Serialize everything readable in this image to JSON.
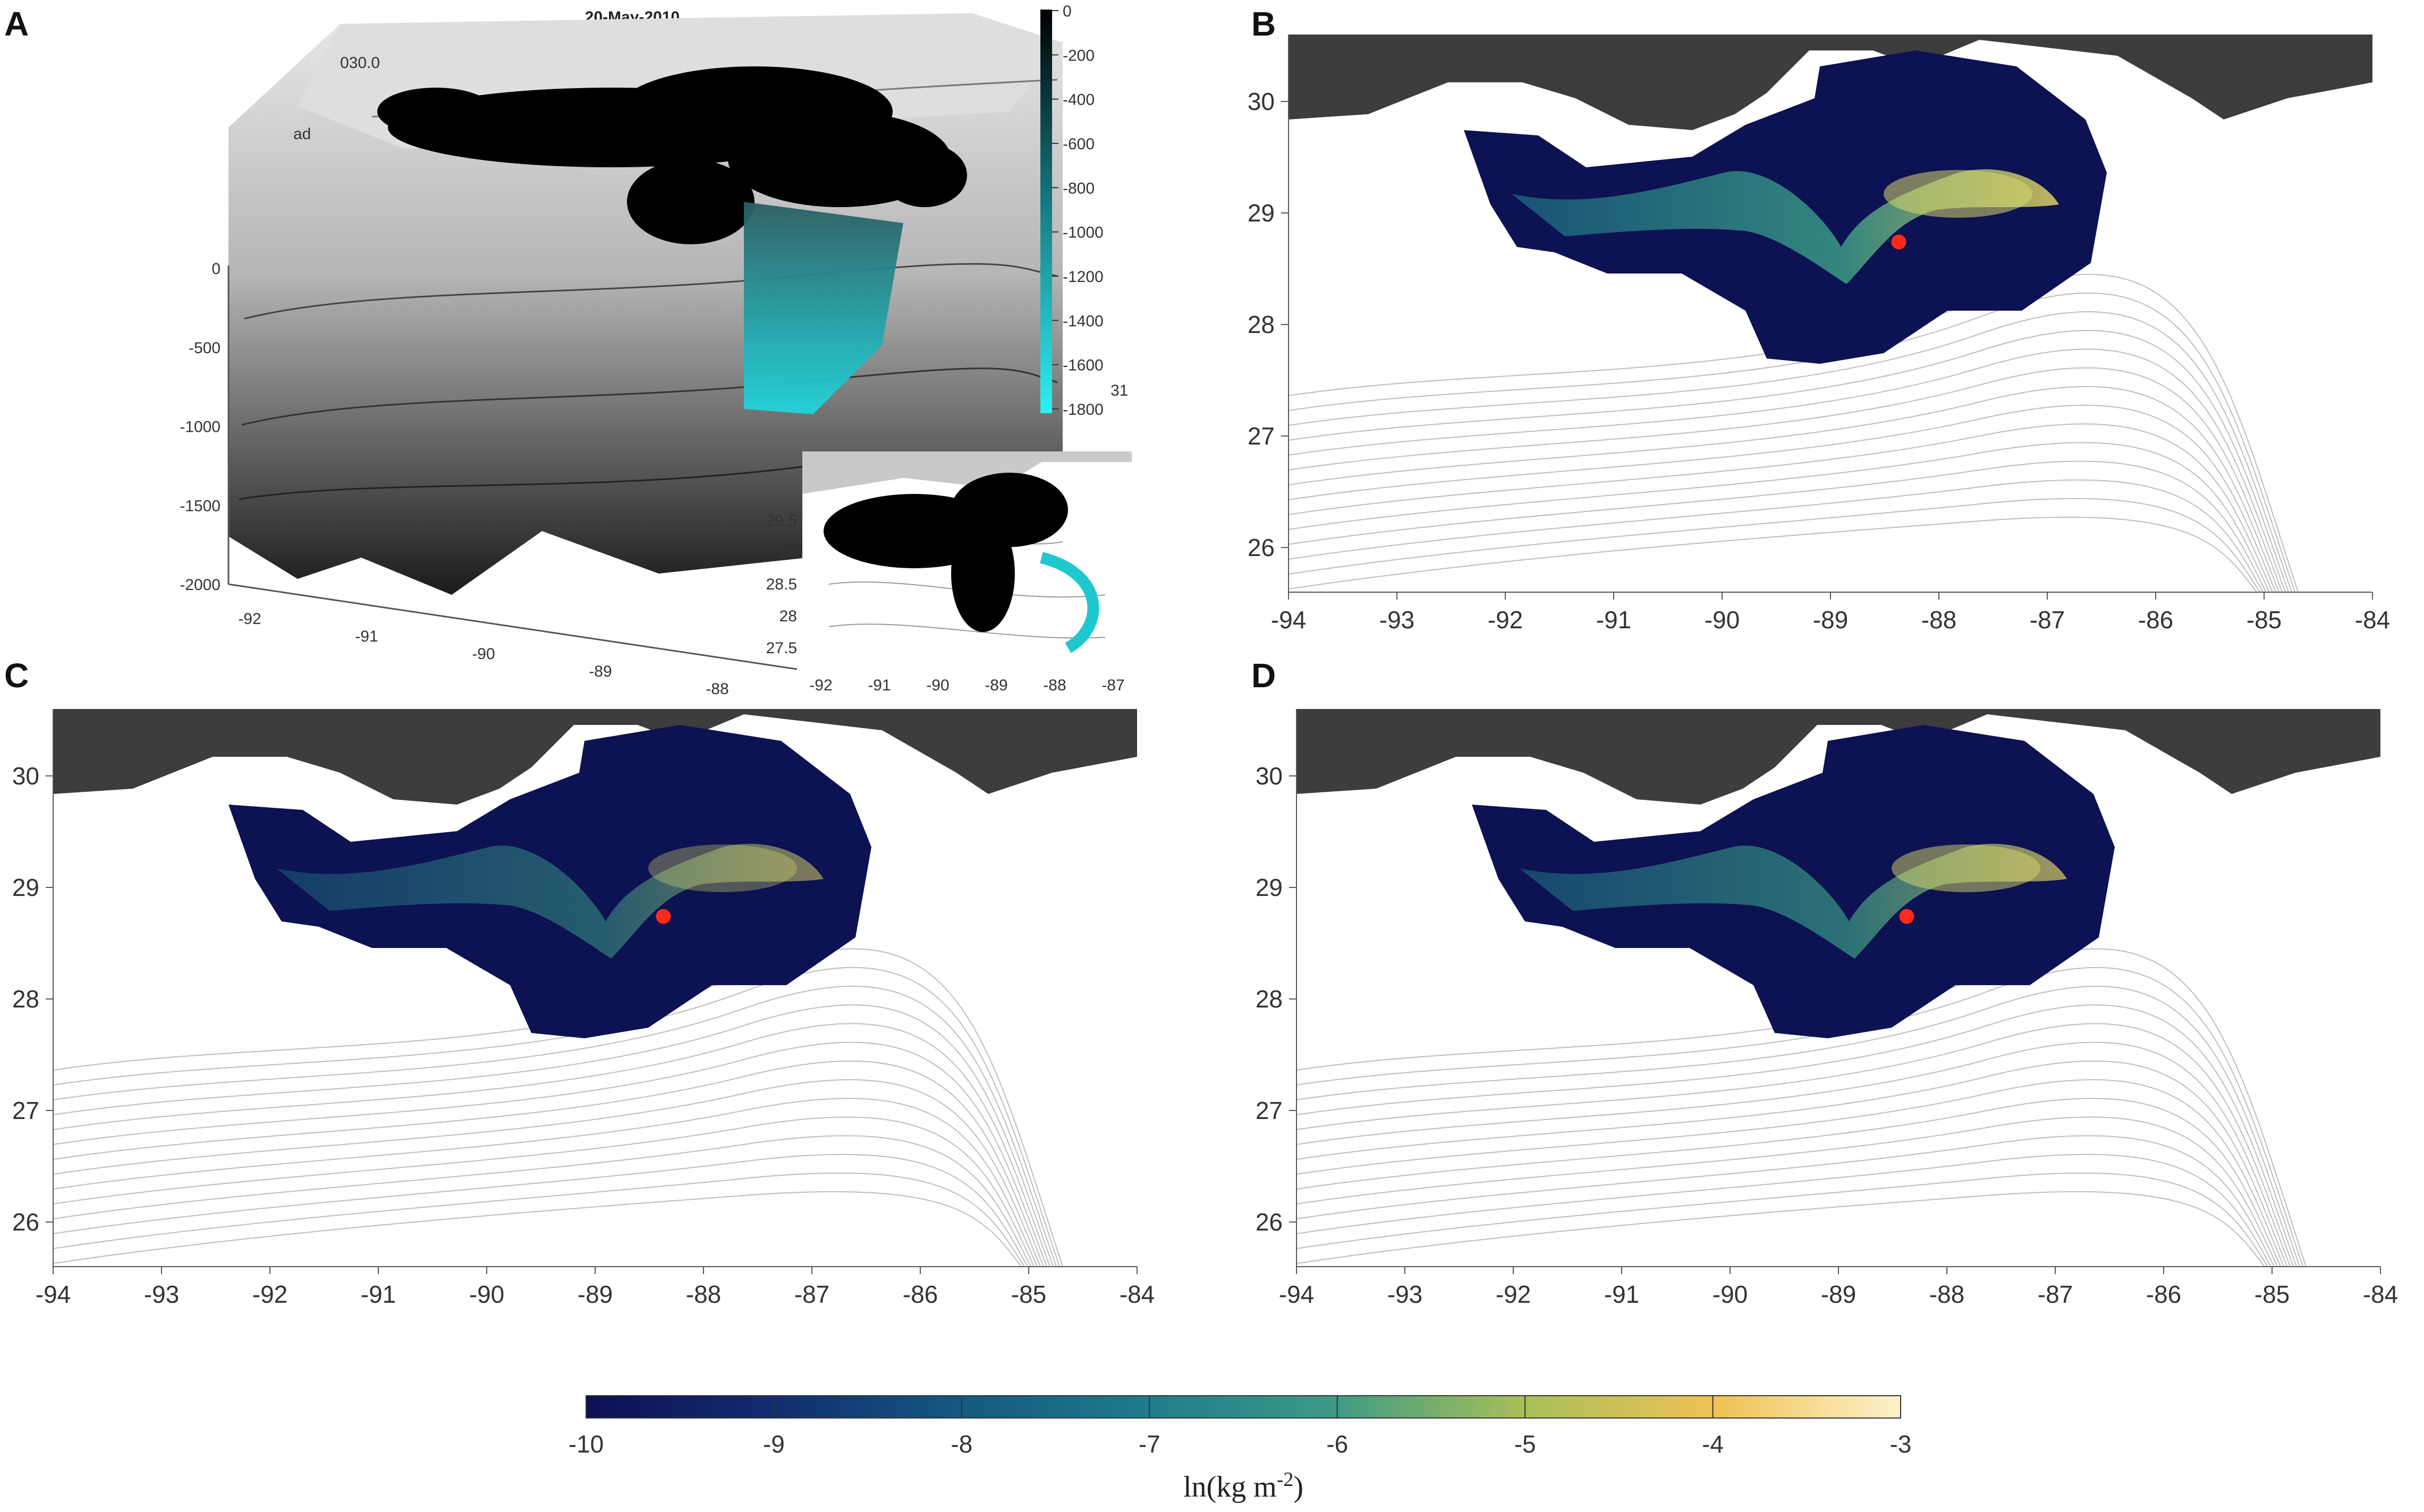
{
  "figure": {
    "panels": [
      {
        "id": "A",
        "letter": "A",
        "title": "20-May-2010",
        "depth_colorbar_ticks": [
          "0",
          "-200",
          "-400",
          "-600",
          "-800",
          "-1000",
          "-1200",
          "-1400",
          "-1600",
          "-1800"
        ],
        "z_ticks": [
          "0",
          "-500",
          "-1000",
          "-1500",
          "-2000"
        ],
        "x_ticks": [
          "-92",
          "-91",
          "-90",
          "-89",
          "-88"
        ],
        "y_ticks_3d": [
          "31"
        ],
        "inset": {
          "x_ticks": [
            "-92",
            "-91",
            "-90",
            "-89",
            "-88",
            "-87"
          ],
          "y_ticks": [
            "29.5",
            "29",
            "28.5",
            "28",
            "27.5"
          ]
        },
        "corner_labels": [
          "030.0",
          "ad"
        ],
        "colors": {
          "particles_surface": "#000000",
          "particles_deep": "#1fc7cf"
        }
      },
      {
        "id": "B",
        "letter": "B"
      },
      {
        "id": "C",
        "letter": "C"
      },
      {
        "id": "D",
        "letter": "D"
      }
    ],
    "map_axes": {
      "x_ticks": [
        "-94",
        "-93",
        "-92",
        "-91",
        "-90",
        "-89",
        "-88",
        "-87",
        "-86",
        "-85",
        "-84"
      ],
      "y_ticks": [
        "30",
        "29",
        "28",
        "27",
        "26"
      ]
    },
    "release_point": {
      "lon": -88.37,
      "lat": 28.74,
      "color": "#ff2a1a"
    },
    "colorbar": {
      "ticks": [
        "-10",
        "-9",
        "-8",
        "-7",
        "-6",
        "-5",
        "-4",
        "-3"
      ],
      "label_main": "ln(kg m",
      "label_sup": "-2",
      "label_end": ")",
      "colors": [
        "#10135a",
        "#123d7a",
        "#17708c",
        "#2a8e8e",
        "#6db472",
        "#d6c64e",
        "#f3c35a",
        "#fbf0c2"
      ]
    },
    "colors": {
      "land": "#3d3d3d",
      "mask": "#ffffff",
      "contour": "#bdbdbd"
    }
  }
}
